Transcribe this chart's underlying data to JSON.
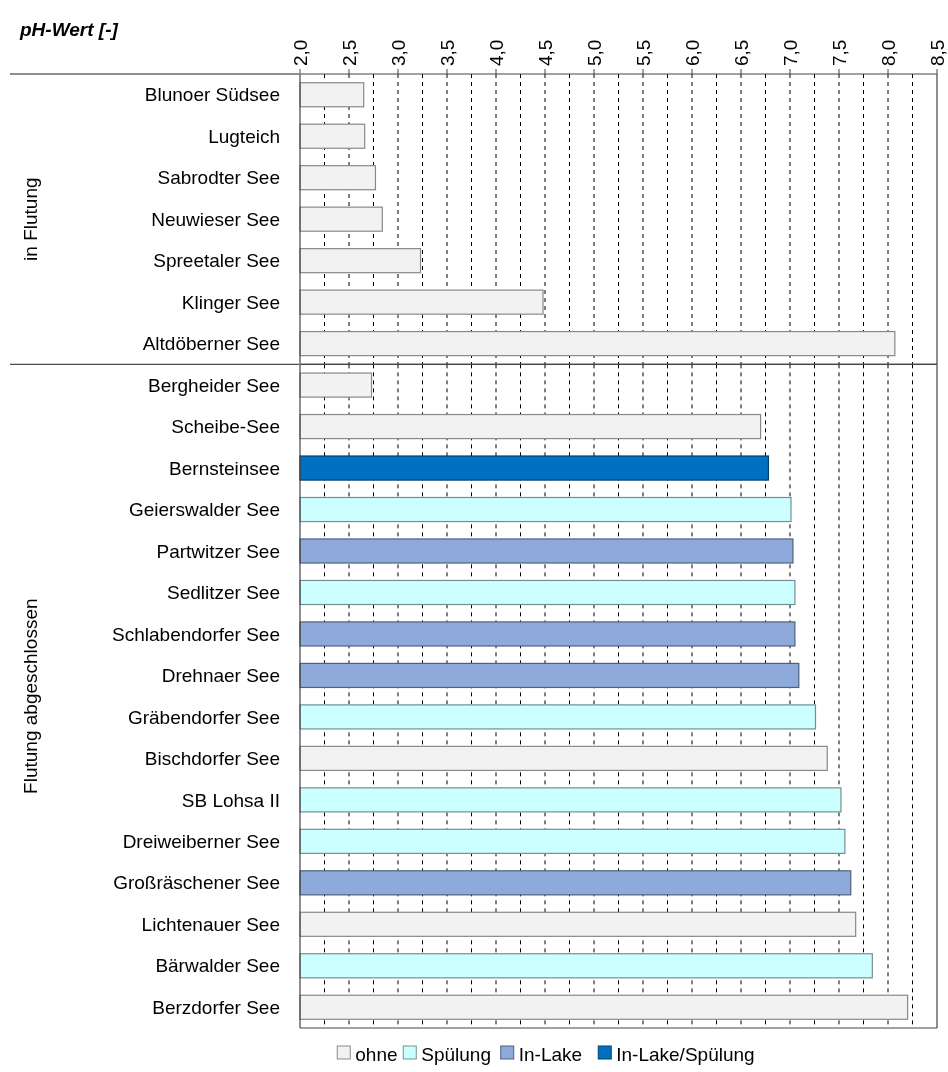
{
  "chart_data": [
    {
      "type": "bar",
      "orientation": "horizontal",
      "xlabel": "pH-Wert [-]",
      "ylabel": "in Flutung",
      "categories": [
        "Blunoer Südsee",
        "Lugteich",
        "Sabrodter See",
        "Neuwieser See",
        "Spreetaler See",
        "Klinger See",
        "Altdöberner See"
      ],
      "series": [
        {
          "color": "#f2f2f2",
          "values": [
            2.65,
            2.66,
            2.77,
            2.84,
            3.23,
            4.48,
            8.07
          ]
        }
      ],
      "xlim": [
        2,
        8.5
      ],
      "xticks": [
        {
          "value": 2,
          "label": "2,0"
        },
        {
          "value": 2.25,
          "label": null
        },
        {
          "value": 2.5,
          "label": "2,5"
        },
        {
          "value": 2.75,
          "label": null
        },
        {
          "value": 3,
          "label": "3,0"
        },
        {
          "value": 3.25,
          "label": null
        },
        {
          "value": 3.5,
          "label": "3,5"
        },
        {
          "value": 3.75,
          "label": null
        },
        {
          "value": 4,
          "label": "4,0"
        },
        {
          "value": 4.25,
          "label": null
        },
        {
          "value": 4.5,
          "label": "4,5"
        },
        {
          "value": 4.75,
          "label": null
        },
        {
          "value": 5,
          "label": "5,0"
        },
        {
          "value": 5.25,
          "label": null
        },
        {
          "value": 5.5,
          "label": "5,5"
        },
        {
          "value": 5.75,
          "label": null
        },
        {
          "value": 6,
          "label": "6,0"
        },
        {
          "value": 6.25,
          "label": null
        },
        {
          "value": 6.5,
          "label": "6,5"
        },
        {
          "value": 6.75,
          "label": null
        },
        {
          "value": 7,
          "label": "7,0"
        },
        {
          "value": 7.25,
          "label": null
        },
        {
          "value": 7.5,
          "label": "7,5"
        },
        {
          "value": 7.75,
          "label": null
        },
        {
          "value": 8,
          "label": "8,0"
        },
        {
          "value": 8.25,
          "label": null
        },
        {
          "value": 8.5,
          "label": "8,5"
        }
      ],
      "grid": "x"
    },
    {
      "type": "bar",
      "orientation": "horizontal",
      "ylabel": "Flutung abgeschlossen",
      "tick_labels": "y",
      "categories": [
        "Bergheider See",
        "Scheibe-See",
        "Bernsteinsee",
        "Geierswalder See",
        "Partwitzer See",
        "Sedlitzer See",
        "Schlabendorfer See",
        "Drehnaer See",
        "Gräbendorfer See",
        "Bischdorfer See",
        "SB Lohsa II",
        "Dreiweiberner See",
        "Großräschener See",
        "Lichtenauer See",
        "Bärwalder See",
        "Berzdorfer See"
      ],
      "series": [
        {
          "name": "ohne",
          "color": "#f2f2f2",
          "values": [
            2.73,
            6.7,
            null,
            null,
            null,
            null,
            null,
            null,
            null,
            7.38,
            null,
            null,
            null,
            7.67,
            null,
            8.2
          ]
        },
        {
          "name": "Spülung",
          "color": "#ccffff",
          "values": [
            null,
            null,
            null,
            7.01,
            null,
            7.05,
            null,
            null,
            7.26,
            null,
            7.52,
            7.56,
            null,
            null,
            7.84,
            null
          ]
        },
        {
          "name": "In-Lake",
          "color": "#8eaadb",
          "values": [
            null,
            null,
            null,
            null,
            7.03,
            null,
            7.05,
            7.09,
            null,
            null,
            null,
            null,
            7.62,
            null,
            null,
            null
          ]
        },
        {
          "name": "In-Lake/Spülung",
          "color": "#0070c0",
          "values": [
            null,
            null,
            6.78,
            null,
            null,
            null,
            null,
            null,
            null,
            null,
            null,
            null,
            null,
            null,
            null,
            null
          ]
        }
      ],
      "xlim": [
        2,
        8.5
      ],
      "xticks": [
        {
          "value": 2,
          "label": null
        },
        {
          "value": 2.25,
          "label": null
        },
        {
          "value": 2.5,
          "label": null
        },
        {
          "value": 2.75,
          "label": null
        },
        {
          "value": 3,
          "label": null
        },
        {
          "value": 3.25,
          "label": null
        },
        {
          "value": 3.5,
          "label": null
        },
        {
          "value": 3.75,
          "label": null
        },
        {
          "value": 4,
          "label": null
        },
        {
          "value": 4.25,
          "label": null
        },
        {
          "value": 4.5,
          "label": null
        },
        {
          "value": 4.75,
          "label": null
        },
        {
          "value": 5,
          "label": null
        },
        {
          "value": 5.25,
          "label": null
        },
        {
          "value": 5.5,
          "label": null
        },
        {
          "value": 5.75,
          "label": null
        },
        {
          "value": 6,
          "label": null
        },
        {
          "value": 6.25,
          "label": null
        },
        {
          "value": 6.5,
          "label": null
        },
        {
          "value": 6.75,
          "label": null
        },
        {
          "value": 7,
          "label": null
        },
        {
          "value": 7.25,
          "label": null
        },
        {
          "value": 7.5,
          "label": null
        },
        {
          "value": 7.75,
          "label": null
        },
        {
          "value": 8,
          "label": null
        },
        {
          "value": 8.25,
          "label": null
        },
        {
          "value": 8.5,
          "label": null
        }
      ],
      "grid": "x",
      "legend": "bottom"
    }
  ]
}
